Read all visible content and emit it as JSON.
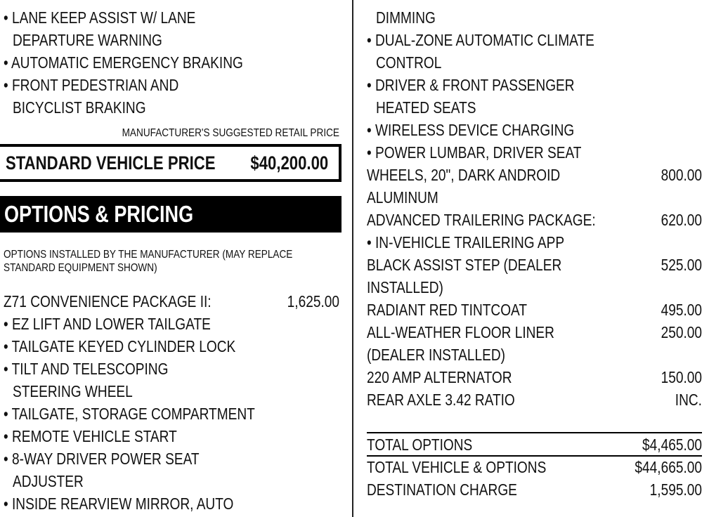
{
  "left": {
    "group_a": [
      {
        "kind": "bullet",
        "text": "LANE KEEP ASSIST W/ LANE"
      },
      {
        "kind": "cont",
        "text": "DEPARTURE WARNING"
      },
      {
        "kind": "bullet",
        "text": "AUTOMATIC EMERGENCY BRAKING"
      },
      {
        "kind": "bullet",
        "text": "FRONT PEDESTRIAN AND"
      },
      {
        "kind": "cont",
        "text": "BICYCLIST BRAKING"
      }
    ],
    "msrp_label": "MANUFACTURER'S SUGGESTED RETAIL PRICE",
    "standard_price": {
      "label": "STANDARD VEHICLE PRICE",
      "value": "$40,200.00"
    },
    "options_heading": "OPTIONS & PRICING",
    "options_note_1": "OPTIONS INSTALLED BY THE MANUFACTURER (MAY REPLACE",
    "options_note_2": "STANDARD EQUIPMENT SHOWN)",
    "group_b": [
      {
        "kind": "item",
        "text": "Z71 CONVENIENCE PACKAGE II:",
        "price": "1,625.00"
      },
      {
        "kind": "bullet",
        "text": "EZ LIFT AND LOWER TAILGATE"
      },
      {
        "kind": "bullet",
        "text": "TAILGATE KEYED CYLINDER LOCK"
      },
      {
        "kind": "bullet",
        "text": "TILT AND TELESCOPING"
      },
      {
        "kind": "cont",
        "text": "STEERING WHEEL"
      },
      {
        "kind": "bullet",
        "text": "TAILGATE, STORAGE COMPARTMENT"
      },
      {
        "kind": "bullet",
        "text": "REMOTE VEHICLE START"
      },
      {
        "kind": "bullet",
        "text": "8-WAY DRIVER POWER SEAT"
      },
      {
        "kind": "cont",
        "text": "ADJUSTER"
      },
      {
        "kind": "bullet",
        "text": "INSIDE REARVIEW MIRROR, AUTO"
      }
    ]
  },
  "right": {
    "items": [
      {
        "kind": "cont",
        "text": "DIMMING"
      },
      {
        "kind": "bullet",
        "text": "DUAL-ZONE AUTOMATIC CLIMATE"
      },
      {
        "kind": "cont",
        "text": "CONTROL"
      },
      {
        "kind": "bullet",
        "text": "DRIVER & FRONT PASSENGER"
      },
      {
        "kind": "cont",
        "text": "HEATED SEATS"
      },
      {
        "kind": "bullet",
        "text": "WIRELESS DEVICE CHARGING"
      },
      {
        "kind": "bullet",
        "text": "POWER LUMBAR, DRIVER SEAT"
      },
      {
        "kind": "item",
        "text": "WHEELS, 20\", DARK ANDROID",
        "price": "800.00"
      },
      {
        "kind": "item",
        "text": "ALUMINUM"
      },
      {
        "kind": "item",
        "text": "ADVANCED TRAILERING PACKAGE:",
        "price": "620.00"
      },
      {
        "kind": "bullet",
        "text": "IN-VEHICLE TRAILERING APP"
      },
      {
        "kind": "item",
        "text": "BLACK ASSIST STEP (DEALER",
        "price": "525.00"
      },
      {
        "kind": "item",
        "text": "INSTALLED)"
      },
      {
        "kind": "item",
        "text": "RADIANT RED TINTCOAT",
        "price": "495.00"
      },
      {
        "kind": "item",
        "text": "ALL-WEATHER FLOOR LINER",
        "price": "250.00"
      },
      {
        "kind": "item",
        "text": "(DEALER INSTALLED)"
      },
      {
        "kind": "item",
        "text": "220 AMP ALTERNATOR",
        "price": "150.00"
      },
      {
        "kind": "item",
        "text": "REAR AXLE 3.42 RATIO",
        "price": "INC."
      }
    ],
    "totals": [
      {
        "kind": "item",
        "text": "TOTAL OPTIONS",
        "price": "$4,465.00"
      },
      {
        "kind": "item",
        "text": "TOTAL VEHICLE & OPTIONS",
        "price": "$44,665.00"
      },
      {
        "kind": "item",
        "text": "DESTINATION CHARGE",
        "price": "1,595.00"
      }
    ]
  }
}
